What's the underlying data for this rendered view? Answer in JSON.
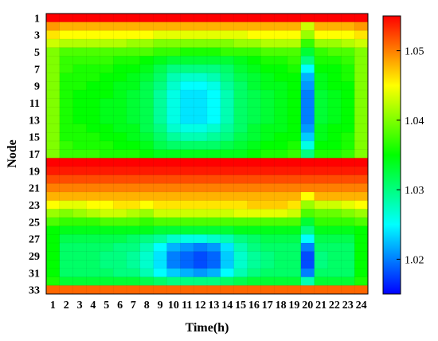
{
  "chart_data": {
    "type": "heatmap",
    "xlabel": "Time(h)",
    "ylabel": "Node",
    "x": [
      1,
      2,
      3,
      4,
      5,
      6,
      7,
      8,
      9,
      10,
      11,
      12,
      13,
      14,
      15,
      16,
      17,
      18,
      19,
      20,
      21,
      22,
      23,
      24
    ],
    "y": [
      1,
      2,
      3,
      4,
      5,
      6,
      7,
      8,
      9,
      10,
      11,
      12,
      13,
      14,
      15,
      16,
      17,
      18,
      19,
      20,
      21,
      22,
      23,
      24,
      25,
      26,
      27,
      28,
      29,
      30,
      31,
      32,
      33
    ],
    "x_tick_labels": [
      "1",
      "2",
      "3",
      "4",
      "5",
      "6",
      "7",
      "8",
      "9",
      "10",
      "11",
      "12",
      "13",
      "14",
      "15",
      "16",
      "17",
      "18",
      "19",
      "20",
      "21",
      "22",
      "23",
      "24"
    ],
    "y_tick_labels": [
      "1",
      "3",
      "5",
      "7",
      "9",
      "11",
      "13",
      "15",
      "17",
      "19",
      "21",
      "23",
      "25",
      "27",
      "29",
      "31",
      "33"
    ],
    "colorbar": {
      "min": 1.015,
      "max": 1.055,
      "ticks": [
        "1.02",
        "1.03",
        "1.04",
        "1.05"
      ],
      "colormap": "jet"
    },
    "values": [
      [
        1.055,
        1.055,
        1.055,
        1.055,
        1.055,
        1.055,
        1.055,
        1.055,
        1.055,
        1.055,
        1.055,
        1.055,
        1.055,
        1.055,
        1.055,
        1.055,
        1.055,
        1.055,
        1.055,
        1.055,
        1.055,
        1.055,
        1.055,
        1.055
      ],
      [
        1.049,
        1.048,
        1.048,
        1.048,
        1.048,
        1.048,
        1.048,
        1.048,
        1.048,
        1.048,
        1.048,
        1.048,
        1.048,
        1.048,
        1.048,
        1.048,
        1.048,
        1.048,
        1.048,
        1.043,
        1.048,
        1.048,
        1.048,
        1.049
      ],
      [
        1.046,
        1.045,
        1.045,
        1.045,
        1.045,
        1.045,
        1.045,
        1.045,
        1.044,
        1.044,
        1.044,
        1.044,
        1.044,
        1.044,
        1.044,
        1.045,
        1.045,
        1.045,
        1.045,
        1.041,
        1.045,
        1.045,
        1.045,
        1.046
      ],
      [
        1.043,
        1.042,
        1.042,
        1.042,
        1.042,
        1.042,
        1.041,
        1.041,
        1.04,
        1.04,
        1.04,
        1.04,
        1.04,
        1.04,
        1.041,
        1.041,
        1.042,
        1.042,
        1.042,
        1.037,
        1.041,
        1.041,
        1.042,
        1.043
      ],
      [
        1.04,
        1.038,
        1.038,
        1.038,
        1.038,
        1.038,
        1.038,
        1.038,
        1.037,
        1.037,
        1.036,
        1.036,
        1.036,
        1.037,
        1.037,
        1.037,
        1.038,
        1.038,
        1.038,
        1.033,
        1.037,
        1.038,
        1.038,
        1.04
      ],
      [
        1.04,
        1.037,
        1.037,
        1.037,
        1.037,
        1.036,
        1.036,
        1.035,
        1.034,
        1.033,
        1.033,
        1.033,
        1.033,
        1.033,
        1.034,
        1.035,
        1.036,
        1.036,
        1.037,
        1.03,
        1.036,
        1.036,
        1.037,
        1.04
      ],
      [
        1.04,
        1.037,
        1.036,
        1.036,
        1.036,
        1.035,
        1.035,
        1.034,
        1.032,
        1.03,
        1.03,
        1.03,
        1.03,
        1.031,
        1.033,
        1.034,
        1.035,
        1.035,
        1.036,
        1.025,
        1.035,
        1.035,
        1.036,
        1.04
      ],
      [
        1.04,
        1.036,
        1.036,
        1.036,
        1.035,
        1.035,
        1.034,
        1.033,
        1.031,
        1.028,
        1.027,
        1.027,
        1.028,
        1.03,
        1.032,
        1.033,
        1.034,
        1.035,
        1.035,
        1.022,
        1.034,
        1.035,
        1.036,
        1.04
      ],
      [
        1.04,
        1.036,
        1.036,
        1.035,
        1.035,
        1.034,
        1.034,
        1.032,
        1.03,
        1.027,
        1.025,
        1.025,
        1.026,
        1.029,
        1.031,
        1.033,
        1.034,
        1.034,
        1.035,
        1.021,
        1.034,
        1.035,
        1.035,
        1.04
      ],
      [
        1.04,
        1.036,
        1.035,
        1.035,
        1.035,
        1.034,
        1.033,
        1.032,
        1.029,
        1.026,
        1.024,
        1.024,
        1.025,
        1.028,
        1.031,
        1.032,
        1.033,
        1.034,
        1.035,
        1.02,
        1.033,
        1.034,
        1.035,
        1.04
      ],
      [
        1.04,
        1.036,
        1.035,
        1.035,
        1.034,
        1.034,
        1.033,
        1.032,
        1.029,
        1.026,
        1.024,
        1.024,
        1.025,
        1.028,
        1.031,
        1.032,
        1.033,
        1.034,
        1.035,
        1.02,
        1.033,
        1.034,
        1.035,
        1.04
      ],
      [
        1.04,
        1.036,
        1.035,
        1.035,
        1.034,
        1.034,
        1.033,
        1.032,
        1.029,
        1.026,
        1.024,
        1.024,
        1.025,
        1.028,
        1.031,
        1.032,
        1.033,
        1.034,
        1.035,
        1.02,
        1.033,
        1.034,
        1.035,
        1.04
      ],
      [
        1.04,
        1.036,
        1.035,
        1.035,
        1.034,
        1.034,
        1.033,
        1.032,
        1.029,
        1.026,
        1.024,
        1.024,
        1.025,
        1.028,
        1.031,
        1.032,
        1.033,
        1.034,
        1.035,
        1.02,
        1.033,
        1.034,
        1.035,
        1.04
      ],
      [
        1.04,
        1.036,
        1.036,
        1.035,
        1.035,
        1.034,
        1.034,
        1.032,
        1.03,
        1.027,
        1.026,
        1.026,
        1.027,
        1.029,
        1.031,
        1.033,
        1.034,
        1.034,
        1.035,
        1.021,
        1.034,
        1.035,
        1.035,
        1.04
      ],
      [
        1.04,
        1.036,
        1.036,
        1.036,
        1.035,
        1.035,
        1.034,
        1.033,
        1.031,
        1.029,
        1.028,
        1.028,
        1.029,
        1.03,
        1.032,
        1.033,
        1.034,
        1.035,
        1.035,
        1.023,
        1.034,
        1.035,
        1.036,
        1.04
      ],
      [
        1.04,
        1.037,
        1.036,
        1.036,
        1.036,
        1.035,
        1.035,
        1.034,
        1.032,
        1.031,
        1.031,
        1.031,
        1.031,
        1.032,
        1.033,
        1.034,
        1.035,
        1.035,
        1.036,
        1.026,
        1.035,
        1.035,
        1.036,
        1.04
      ],
      [
        1.04,
        1.037,
        1.037,
        1.037,
        1.036,
        1.036,
        1.036,
        1.035,
        1.034,
        1.034,
        1.034,
        1.034,
        1.034,
        1.034,
        1.034,
        1.035,
        1.036,
        1.036,
        1.037,
        1.03,
        1.036,
        1.036,
        1.037,
        1.04
      ],
      [
        1.055,
        1.055,
        1.055,
        1.055,
        1.055,
        1.055,
        1.055,
        1.055,
        1.055,
        1.055,
        1.055,
        1.055,
        1.055,
        1.055,
        1.055,
        1.055,
        1.055,
        1.055,
        1.055,
        1.055,
        1.055,
        1.055,
        1.055,
        1.055
      ],
      [
        1.054,
        1.054,
        1.054,
        1.054,
        1.054,
        1.054,
        1.054,
        1.054,
        1.054,
        1.054,
        1.054,
        1.054,
        1.054,
        1.054,
        1.054,
        1.054,
        1.054,
        1.054,
        1.054,
        1.054,
        1.054,
        1.054,
        1.054,
        1.054
      ],
      [
        1.052,
        1.052,
        1.052,
        1.052,
        1.052,
        1.052,
        1.052,
        1.052,
        1.052,
        1.052,
        1.052,
        1.052,
        1.052,
        1.052,
        1.052,
        1.052,
        1.052,
        1.052,
        1.052,
        1.052,
        1.052,
        1.052,
        1.052,
        1.052
      ],
      [
        1.05,
        1.05,
        1.05,
        1.05,
        1.05,
        1.05,
        1.05,
        1.05,
        1.05,
        1.05,
        1.05,
        1.05,
        1.05,
        1.05,
        1.05,
        1.05,
        1.05,
        1.05,
        1.05,
        1.05,
        1.05,
        1.05,
        1.05,
        1.05
      ],
      [
        1.048,
        1.048,
        1.048,
        1.048,
        1.048,
        1.048,
        1.048,
        1.048,
        1.048,
        1.048,
        1.048,
        1.048,
        1.048,
        1.048,
        1.048,
        1.048,
        1.048,
        1.048,
        1.048,
        1.045,
        1.048,
        1.048,
        1.048,
        1.048
      ],
      [
        1.045,
        1.044,
        1.044,
        1.045,
        1.045,
        1.046,
        1.046,
        1.045,
        1.046,
        1.046,
        1.046,
        1.046,
        1.046,
        1.046,
        1.046,
        1.047,
        1.047,
        1.047,
        1.046,
        1.041,
        1.043,
        1.043,
        1.044,
        1.045
      ],
      [
        1.041,
        1.04,
        1.041,
        1.042,
        1.043,
        1.043,
        1.042,
        1.041,
        1.043,
        1.043,
        1.043,
        1.043,
        1.043,
        1.043,
        1.044,
        1.044,
        1.044,
        1.044,
        1.043,
        1.038,
        1.039,
        1.039,
        1.04,
        1.041
      ],
      [
        1.038,
        1.037,
        1.037,
        1.037,
        1.038,
        1.038,
        1.038,
        1.037,
        1.038,
        1.038,
        1.038,
        1.038,
        1.038,
        1.038,
        1.038,
        1.038,
        1.038,
        1.038,
        1.038,
        1.033,
        1.037,
        1.037,
        1.037,
        1.038
      ],
      [
        1.035,
        1.034,
        1.034,
        1.034,
        1.034,
        1.034,
        1.034,
        1.034,
        1.033,
        1.033,
        1.033,
        1.033,
        1.033,
        1.033,
        1.034,
        1.034,
        1.034,
        1.034,
        1.034,
        1.03,
        1.034,
        1.034,
        1.034,
        1.035
      ],
      [
        1.035,
        1.032,
        1.032,
        1.032,
        1.032,
        1.032,
        1.031,
        1.03,
        1.029,
        1.027,
        1.026,
        1.026,
        1.027,
        1.028,
        1.03,
        1.031,
        1.032,
        1.032,
        1.032,
        1.025,
        1.032,
        1.032,
        1.032,
        1.035
      ],
      [
        1.035,
        1.031,
        1.031,
        1.031,
        1.031,
        1.03,
        1.03,
        1.028,
        1.025,
        1.022,
        1.021,
        1.02,
        1.021,
        1.024,
        1.028,
        1.03,
        1.031,
        1.031,
        1.031,
        1.02,
        1.031,
        1.031,
        1.031,
        1.035
      ],
      [
        1.035,
        1.031,
        1.031,
        1.031,
        1.03,
        1.03,
        1.029,
        1.027,
        1.024,
        1.02,
        1.019,
        1.018,
        1.019,
        1.023,
        1.027,
        1.029,
        1.03,
        1.031,
        1.031,
        1.018,
        1.03,
        1.031,
        1.031,
        1.035
      ],
      [
        1.035,
        1.031,
        1.031,
        1.031,
        1.03,
        1.03,
        1.029,
        1.027,
        1.024,
        1.02,
        1.019,
        1.018,
        1.019,
        1.023,
        1.027,
        1.029,
        1.03,
        1.031,
        1.031,
        1.018,
        1.03,
        1.031,
        1.031,
        1.035
      ],
      [
        1.035,
        1.031,
        1.031,
        1.031,
        1.031,
        1.03,
        1.03,
        1.028,
        1.025,
        1.023,
        1.022,
        1.021,
        1.022,
        1.025,
        1.028,
        1.03,
        1.031,
        1.031,
        1.031,
        1.02,
        1.031,
        1.031,
        1.031,
        1.035
      ],
      [
        1.036,
        1.033,
        1.033,
        1.033,
        1.033,
        1.033,
        1.033,
        1.032,
        1.031,
        1.03,
        1.03,
        1.03,
        1.03,
        1.031,
        1.032,
        1.033,
        1.033,
        1.033,
        1.033,
        1.028,
        1.033,
        1.033,
        1.033,
        1.036
      ],
      [
        1.051,
        1.051,
        1.051,
        1.051,
        1.051,
        1.051,
        1.051,
        1.051,
        1.051,
        1.051,
        1.051,
        1.051,
        1.051,
        1.051,
        1.051,
        1.051,
        1.051,
        1.051,
        1.051,
        1.051,
        1.051,
        1.051,
        1.051,
        1.051
      ]
    ]
  }
}
